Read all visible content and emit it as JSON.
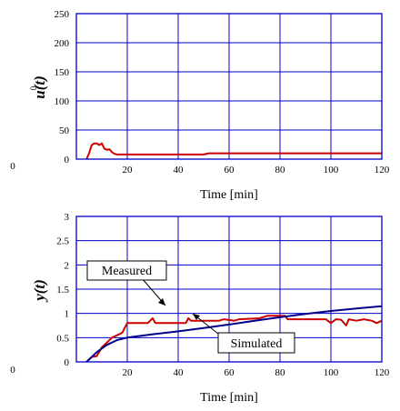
{
  "chart_data": [
    {
      "type": "line",
      "xlabel": "Time [min]",
      "ylabel": "u(t)",
      "ylabel_superscript": "0",
      "xlim": [
        0,
        120
      ],
      "ylim": [
        0,
        250
      ],
      "x_ticks": [
        "20",
        "40",
        "60",
        "80",
        "100",
        "120"
      ],
      "y_ticks": [
        "0",
        "50",
        "100",
        "150",
        "200",
        "250"
      ],
      "left_tick": "0",
      "grid": true,
      "series": [
        {
          "color": "#cc0000",
          "points": [
            [
              4,
              0
            ],
            [
              5,
              10
            ],
            [
              6,
              24
            ],
            [
              7,
              27
            ],
            [
              8,
              27
            ],
            [
              9,
              24
            ],
            [
              10,
              27
            ],
            [
              11,
              18
            ],
            [
              12,
              16
            ],
            [
              13,
              17
            ],
            [
              14,
              12
            ],
            [
              15,
              9
            ],
            [
              16,
              8
            ],
            [
              30,
              8
            ],
            [
              50,
              8
            ],
            [
              52,
              10
            ],
            [
              60,
              10
            ],
            [
              120,
              10
            ]
          ]
        }
      ]
    },
    {
      "type": "line",
      "xlabel": "Time [min]",
      "ylabel": "y(t)",
      "xlim": [
        0,
        120
      ],
      "ylim": [
        0,
        3
      ],
      "x_ticks": [
        "20",
        "40",
        "60",
        "80",
        "100",
        "120"
      ],
      "y_ticks": [
        "0",
        "0.5",
        "1",
        "1.5",
        "2",
        "2.5",
        "3"
      ],
      "left_tick": "0",
      "grid": true,
      "series": [
        {
          "name": "Measured",
          "color": "#cc0000",
          "points": [
            [
              4,
              0
            ],
            [
              6,
              0.1
            ],
            [
              8,
              0.12
            ],
            [
              10,
              0.3
            ],
            [
              12,
              0.4
            ],
            [
              14,
              0.5
            ],
            [
              16,
              0.55
            ],
            [
              18,
              0.6
            ],
            [
              20,
              0.8
            ],
            [
              28,
              0.8
            ],
            [
              30,
              0.9
            ],
            [
              31,
              0.8
            ],
            [
              43,
              0.8
            ],
            [
              44,
              0.9
            ],
            [
              45,
              0.85
            ],
            [
              56,
              0.85
            ],
            [
              58,
              0.88
            ],
            [
              62,
              0.85
            ],
            [
              64,
              0.88
            ],
            [
              72,
              0.9
            ],
            [
              75,
              0.95
            ],
            [
              82,
              0.95
            ],
            [
              83,
              0.88
            ],
            [
              98,
              0.88
            ],
            [
              100,
              0.8
            ],
            [
              102,
              0.88
            ],
            [
              104,
              0.87
            ],
            [
              106,
              0.75
            ],
            [
              107,
              0.88
            ],
            [
              110,
              0.85
            ],
            [
              113,
              0.88
            ],
            [
              116,
              0.85
            ],
            [
              118,
              0.8
            ],
            [
              120,
              0.85
            ]
          ]
        },
        {
          "name": "Simulated",
          "color": "#00008b",
          "points": [
            [
              4,
              0
            ],
            [
              8,
              0.2
            ],
            [
              12,
              0.35
            ],
            [
              16,
              0.45
            ],
            [
              20,
              0.5
            ],
            [
              30,
              0.57
            ],
            [
              40,
              0.63
            ],
            [
              50,
              0.7
            ],
            [
              60,
              0.77
            ],
            [
              70,
              0.85
            ],
            [
              80,
              0.92
            ],
            [
              90,
              0.99
            ],
            [
              100,
              1.05
            ],
            [
              110,
              1.1
            ],
            [
              120,
              1.15
            ]
          ]
        }
      ],
      "annotations": [
        {
          "text": "Measured",
          "arrow_to": [
            52,
            0.76
          ]
        },
        {
          "text": "Simulated",
          "arrow_to": [
            72,
            0.87
          ]
        }
      ]
    }
  ]
}
